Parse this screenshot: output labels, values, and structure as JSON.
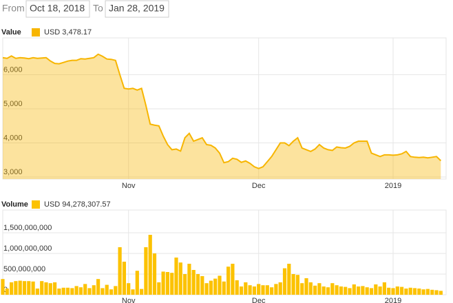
{
  "range_selector": {
    "from_label": "From",
    "from": "Oct 18, 2018",
    "to_label": "To",
    "to": "Jan 28, 2019"
  },
  "chart_data": [
    {
      "type": "area",
      "title": "Value",
      "categories": [
        null,
        null,
        null,
        null,
        null,
        null,
        null,
        null,
        null,
        null,
        null,
        null,
        null,
        null,
        null,
        null,
        null,
        null,
        null,
        null,
        null,
        null,
        null,
        null,
        null,
        null,
        null,
        null,
        null,
        "Nov",
        null,
        null,
        null,
        null,
        null,
        null,
        null,
        null,
        null,
        null,
        null,
        null,
        null,
        null,
        null,
        null,
        null,
        null,
        null,
        null,
        null,
        null,
        null,
        null,
        null,
        null,
        null,
        null,
        null,
        "Dec",
        null,
        null,
        null,
        null,
        null,
        null,
        null,
        null,
        null,
        null,
        null,
        null,
        null,
        null,
        null,
        null,
        null,
        null,
        null,
        null,
        null,
        null,
        null,
        null,
        null,
        null,
        null,
        null,
        null,
        null,
        "2019",
        null,
        null,
        null,
        null,
        null,
        null,
        null,
        null,
        null,
        null,
        null
      ],
      "series": [
        {
          "name": "USD 3,478.17",
          "color": "#f7b500",
          "values": [
            6500,
            6480,
            6550,
            6480,
            6500,
            6490,
            6470,
            6500,
            6480,
            6490,
            6500,
            6400,
            6330,
            6320,
            6360,
            6400,
            6420,
            6420,
            6470,
            6460,
            6480,
            6500,
            6600,
            6540,
            6460,
            6450,
            6420,
            6000,
            5600,
            5580,
            5600,
            5550,
            5600,
            5100,
            4550,
            4520,
            4500,
            4200,
            3950,
            3800,
            3820,
            3760,
            4150,
            4280,
            4050,
            4100,
            4150,
            3950,
            3930,
            3850,
            3700,
            3420,
            3450,
            3550,
            3520,
            3430,
            3470,
            3400,
            3300,
            3250,
            3300,
            3450,
            3600,
            3800,
            4000,
            4000,
            3920,
            4050,
            4150,
            3850,
            3800,
            3750,
            3820,
            3950,
            3850,
            3800,
            3780,
            3880,
            3860,
            3850,
            3900,
            4000,
            4050,
            4050,
            4050,
            3700,
            3650,
            3600,
            3650,
            3650,
            3640,
            3650,
            3680,
            3750,
            3600,
            3580,
            3570,
            3580,
            3560,
            3580,
            3600,
            3478.17
          ]
        }
      ],
      "ylim": [
        2940,
        7080
      ],
      "yticks": [
        {
          "value": 3000,
          "label": "3,000"
        },
        {
          "value": 4000,
          "label": "4,000"
        },
        {
          "value": 5000,
          "label": "5,000"
        },
        {
          "value": 6000,
          "label": "6,000"
        }
      ],
      "grid": true
    },
    {
      "type": "bar",
      "title": "Volume",
      "categories": [
        null,
        null,
        null,
        null,
        null,
        null,
        null,
        null,
        null,
        null,
        null,
        null,
        null,
        null,
        null,
        null,
        null,
        null,
        null,
        null,
        null,
        null,
        null,
        null,
        null,
        null,
        null,
        null,
        null,
        "Nov",
        null,
        null,
        null,
        null,
        null,
        null,
        null,
        null,
        null,
        null,
        null,
        null,
        null,
        null,
        null,
        null,
        null,
        null,
        null,
        null,
        null,
        null,
        null,
        null,
        null,
        null,
        null,
        null,
        null,
        "Dec",
        null,
        null,
        null,
        null,
        null,
        null,
        null,
        null,
        null,
        null,
        null,
        null,
        null,
        null,
        null,
        null,
        null,
        null,
        null,
        null,
        null,
        null,
        null,
        null,
        null,
        null,
        null,
        null,
        null,
        null,
        "2019",
        null,
        null,
        null,
        null,
        null,
        null,
        null,
        null,
        null,
        null,
        null
      ],
      "series": [
        {
          "name": "USD 94,278,307.57",
          "color": "#fcc200",
          "values": [
            380000000.0,
            150000000.0,
            300000000.0,
            330000000.0,
            340000000.0,
            330000000.0,
            330000000.0,
            320000000.0,
            150000000.0,
            330000000.0,
            300000000.0,
            280000000.0,
            300000000.0,
            150000000.0,
            170000000.0,
            170000000.0,
            160000000.0,
            210000000.0,
            180000000.0,
            260000000.0,
            160000000.0,
            230000000.0,
            380000000.0,
            160000000.0,
            240000000.0,
            130000000.0,
            210000000.0,
            1150000000.0,
            800000000.0,
            280000000.0,
            130000000.0,
            580000000.0,
            140000000.0,
            1150000000.0,
            1450000000.0,
            1000000000.0,
            300000000.0,
            560000000.0,
            550000000.0,
            530000000.0,
            900000000.0,
            780000000.0,
            500000000.0,
            750000000.0,
            600000000.0,
            500000000.0,
            450000000.0,
            280000000.0,
            340000000.0,
            390000000.0,
            460000000.0,
            320000000.0,
            680000000.0,
            750000000.0,
            350000000.0,
            200000000.0,
            300000000.0,
            230000000.0,
            200000000.0,
            260000000.0,
            230000000.0,
            230000000.0,
            180000000.0,
            260000000.0,
            300000000.0,
            640000000.0,
            750000000.0,
            500000000.0,
            480000000.0,
            280000000.0,
            400000000.0,
            300000000.0,
            220000000.0,
            280000000.0,
            200000000.0,
            180000000.0,
            280000000.0,
            230000000.0,
            200000000.0,
            190000000.0,
            160000000.0,
            250000000.0,
            200000000.0,
            210000000.0,
            180000000.0,
            160000000.0,
            250000000.0,
            200000000.0,
            300000000.0,
            170000000.0,
            160000000.0,
            200000000.0,
            190000000.0,
            150000000.0,
            170000000.0,
            160000000.0,
            150000000.0,
            130000000.0,
            140000000.0,
            120000000.0,
            110000000.0,
            94278307.57
          ]
        }
      ],
      "ylim": [
        0,
        2050000000
      ],
      "yticks": [
        0,
        {
          "value": 500000000,
          "label": "500,000,000"
        },
        {
          "value": 1000000000,
          "label": "1,000,000,000"
        },
        {
          "value": 1500000000,
          "label": "1,500,000,000"
        }
      ],
      "grid": true
    }
  ]
}
